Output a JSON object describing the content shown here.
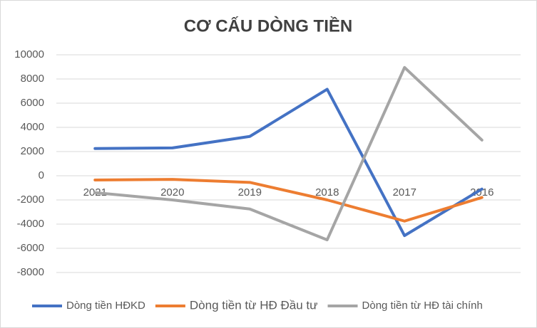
{
  "chart_data": {
    "type": "line",
    "title": "CƠ CẤU DÒNG TIỀN",
    "categories": [
      "2021",
      "2020",
      "2019",
      "2018",
      "2017",
      "2016"
    ],
    "series": [
      {
        "name": "Dòng tiền HĐKD",
        "color": "#4472c4",
        "values": [
          2250,
          2300,
          3250,
          7150,
          -4950,
          -1100
        ]
      },
      {
        "name": "Dòng tiền từ HĐ Đầu tư",
        "color": "#ed7d31",
        "values": [
          -350,
          -300,
          -550,
          -2000,
          -3750,
          -1800
        ]
      },
      {
        "name": "Dòng tiền từ HĐ tài chính",
        "color": "#a5a5a5",
        "values": [
          -1400,
          -2000,
          -2750,
          -5300,
          8950,
          2950
        ]
      }
    ],
    "ylim": [
      -8000,
      10000
    ],
    "yticks": [
      -8000,
      -6000,
      -4000,
      -2000,
      0,
      2000,
      4000,
      6000,
      8000,
      10000
    ],
    "grid": true,
    "legend": "bottom"
  }
}
